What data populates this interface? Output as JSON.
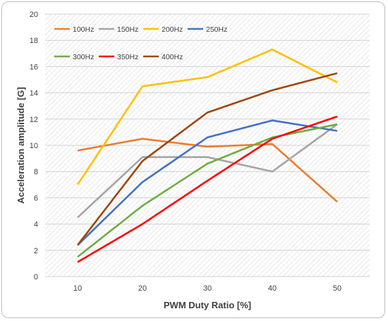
{
  "chart_data": {
    "type": "line",
    "xlabel": "PWM Duty Ratio [%]",
    "ylabel": "Acceleration amplitude [G]",
    "categories": [
      "10",
      "20",
      "30",
      "40",
      "50"
    ],
    "x": [
      10,
      20,
      30,
      40,
      50
    ],
    "ylim": [
      0,
      20
    ],
    "yticks": [
      "0",
      "2",
      "4",
      "6",
      "8",
      "10",
      "12",
      "14",
      "16",
      "18",
      "20"
    ],
    "grid": true,
    "legend": "top-left",
    "series": [
      {
        "name": "100Hz",
        "color": "#ed7d31",
        "values": [
          9.6,
          10.5,
          9.9,
          10.1,
          5.7
        ]
      },
      {
        "name": "150Hz",
        "color": "#a5a5a5",
        "values": [
          4.5,
          9.1,
          9.1,
          8.0,
          11.6
        ]
      },
      {
        "name": "200Hz",
        "color": "#ffc000",
        "values": [
          7.0,
          14.5,
          15.2,
          17.3,
          14.8
        ]
      },
      {
        "name": "250Hz",
        "color": "#4472c4",
        "values": [
          2.4,
          7.2,
          10.6,
          11.9,
          11.1
        ]
      },
      {
        "name": "300Hz",
        "color": "#70ad47",
        "values": [
          1.5,
          5.4,
          8.6,
          10.6,
          11.6
        ]
      },
      {
        "name": "350Hz",
        "color": "#ff0000",
        "values": [
          1.1,
          4.0,
          7.3,
          10.5,
          12.2
        ]
      },
      {
        "name": "400Hz",
        "color": "#9e480e",
        "values": [
          2.4,
          8.8,
          12.5,
          14.2,
          15.5
        ]
      }
    ]
  }
}
